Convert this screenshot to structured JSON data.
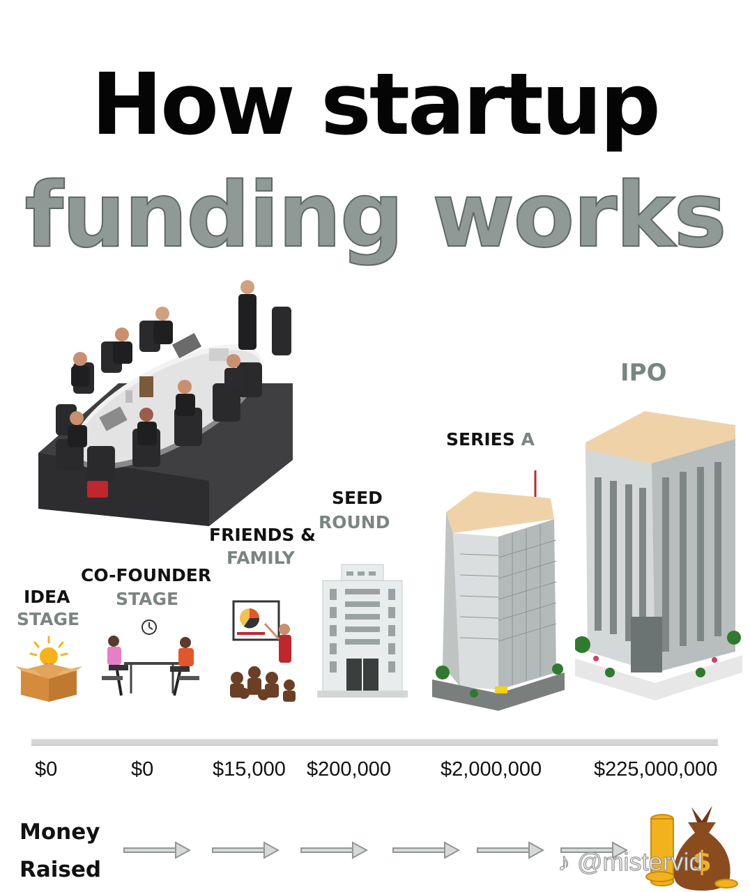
{
  "title": {
    "line1": "How startup",
    "line2": "funding works"
  },
  "stages": [
    {
      "name_line1": "IDEA",
      "name_line2": "STAGE",
      "amount": "$0",
      "icon": "lightbulb-box-icon"
    },
    {
      "name_line1": "CO-FOUNDER",
      "name_line2": "STAGE",
      "amount": "$0",
      "icon": "cofounders-meeting-icon"
    },
    {
      "name_line1": "FRIENDS &",
      "name_line2": "FAMILY",
      "amount": "$15,000",
      "icon": "presentation-audience-icon"
    },
    {
      "name_line1": "SEED",
      "name_line2": "ROUND",
      "amount": "$200,000",
      "icon": "small-office-building-icon"
    },
    {
      "name_line1": "SERIES",
      "name_line2": "A",
      "amount": "$2,000,000",
      "icon": "highrise-building-icon"
    },
    {
      "name_line1": "IPO",
      "name_line2": "",
      "amount": "$225,000,000",
      "icon": "skyscraper-icon"
    }
  ],
  "footer": {
    "money_line1": "Money",
    "money_line2": "Raised",
    "arrow_count": 6,
    "end_icon": "money-bag-coins-icon"
  },
  "watermark": "@mistervid",
  "decor": {
    "boardroom": "boardroom-meeting-illustration",
    "colors": {
      "title_dark": "#050505",
      "title_grey": "#8f9a97",
      "label_grey": "#7a8582",
      "timeline": "#c8c8c8"
    }
  }
}
